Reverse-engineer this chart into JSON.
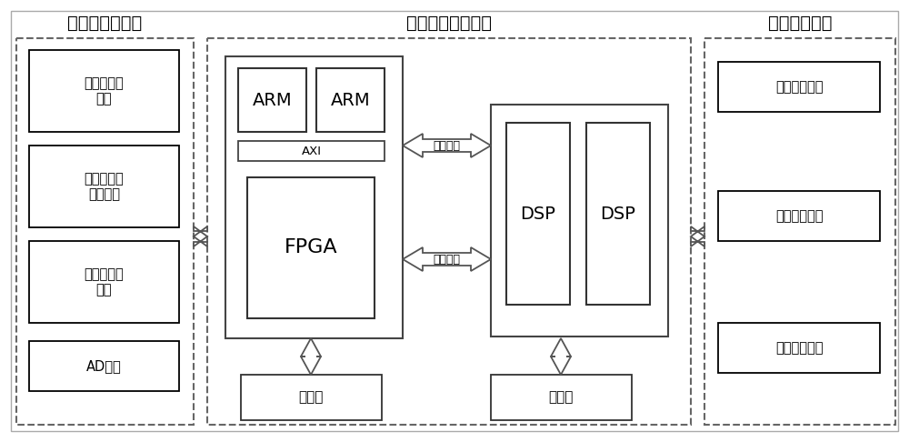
{
  "title_left": "传感器输入接口",
  "title_center": "异构多核处理核心",
  "title_right": "数据输出接口",
  "left_boxes": [
    "图像传感器\n接口",
    "惯性姿态传\n感器接口",
    "卫星传感器\n接口",
    "AD接口"
  ],
  "right_boxes": [
    "串口通讯接口",
    "图像显示接口",
    "网络传输接口"
  ],
  "storage": "存储器",
  "arm_label": "ARM",
  "axi_label": "AXI",
  "fpga_label": "FPGA",
  "dsp_label": "DSP",
  "ctrl_label": "控制通路",
  "highspeed_label": "高速互联",
  "bg_color": "#ffffff",
  "outer_border_color": "#999999",
  "dashed_color": "#666666",
  "solid_color": "#000000",
  "green_border": "#3a7d44"
}
